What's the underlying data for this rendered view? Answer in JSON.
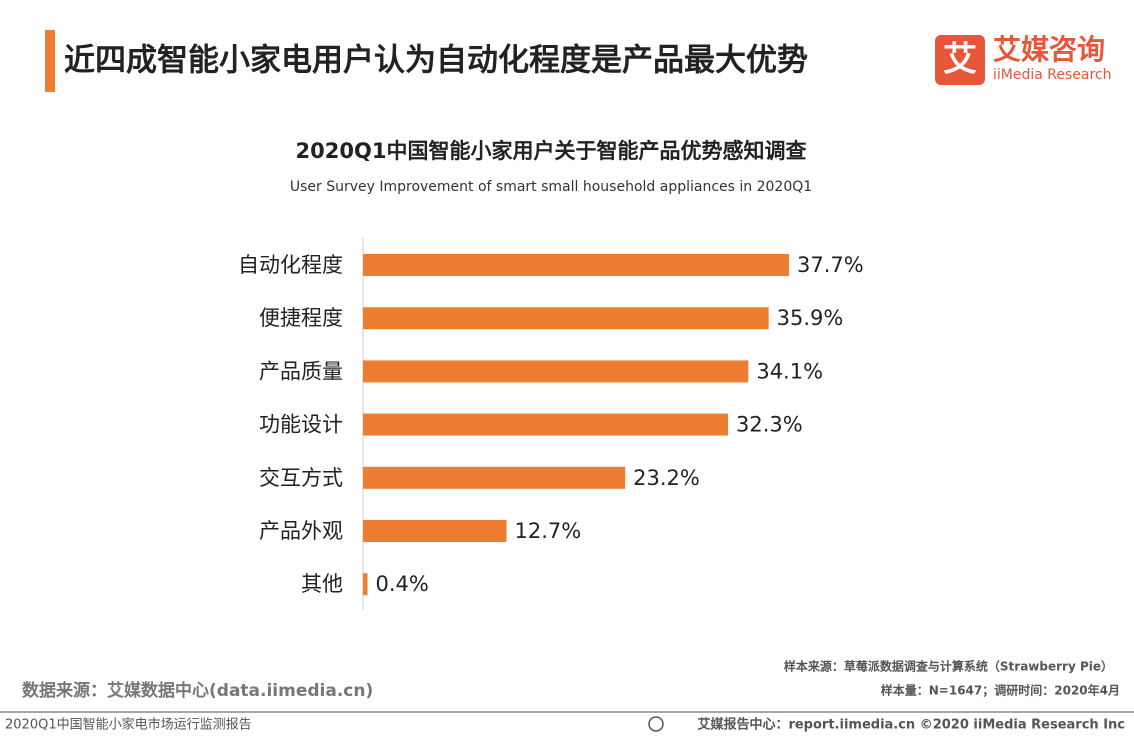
{
  "page": {
    "title": "近四成智能小家电用户认为自动化程度是产品最大优势",
    "logo_mark": "艾",
    "logo_name": "艾媒咨询",
    "logo_sub": "iiMedia Research",
    "sample_source": "样本来源：草莓派数据调查与计算系统（Strawberry Pie）",
    "sample_size": "样本量：N=1647；调研时间：2020年4月",
    "data_source": "数据来源：艾媒数据中心(data.iimedia.cn)",
    "footer_left": "2020Q1中国智能小家电市场运行监测报告",
    "footer_right": "艾媒报告中心：report.iimedia.cn   ©2020  iiMedia Research  Inc"
  },
  "chart_data": {
    "type": "hbar",
    "title": "2020Q1中国智能小家用户关于智能产品优势感知调查",
    "subtitle": "User Survey Improvement of smart small household appliances in 2020Q1",
    "categories": [
      "自动化程度",
      "便捷程度",
      "产品质量",
      "功能设计",
      "交互方式",
      "产品外观",
      "其他"
    ],
    "values": [
      37.7,
      35.9,
      34.1,
      32.3,
      23.2,
      12.7,
      0.4
    ],
    "value_labels": [
      "37.7%",
      "35.9%",
      "34.1%",
      "32.3%",
      "23.2%",
      "12.7%",
      "0.4%"
    ],
    "color": "#ed7d31"
  }
}
